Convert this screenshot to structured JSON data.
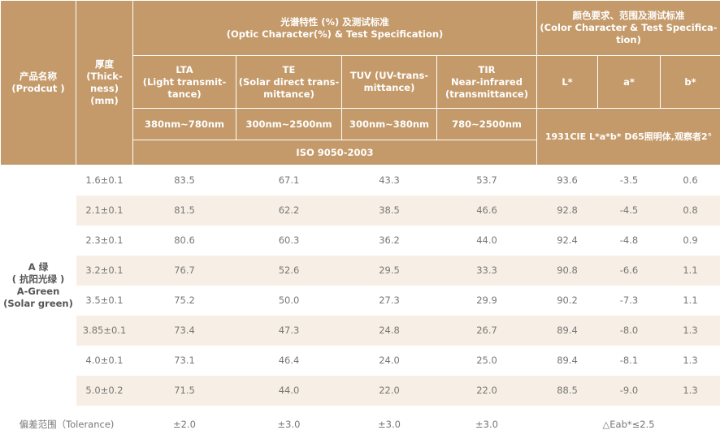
{
  "header": {
    "product": [
      "产品名称",
      "(Prodcut )"
    ],
    "thickness": [
      "厚度",
      "(Thick-",
      "ness)",
      "(mm)"
    ],
    "optic_group": [
      "光谱特性 (%) 及测试标准",
      "(Optic Character(%) & Test Specification)"
    ],
    "color_group": [
      "颜色要求、范围及测试标准",
      "(Color Character & Test Specifica-",
      "tion)"
    ],
    "lta": [
      "LTA",
      "(Light transmit-",
      "tance)"
    ],
    "te": [
      "TE",
      "(Solar direct trans-",
      "mittance)"
    ],
    "tuv": [
      "TUV  (UV-trans-",
      "mittance)"
    ],
    "tir": [
      "TIR",
      "Near-infrared",
      "(transmittance)"
    ],
    "color_columns": [
      "L*",
      "a*",
      "b*"
    ],
    "ranges": [
      "380nm~780nm",
      "300nm~2500nm",
      "300nm~380nm",
      "780~2500nm"
    ],
    "color_standard": "1931CIE L*a*b*  D65照明体,观察者2°",
    "optic_standard": "ISO 9050-2003"
  },
  "product": [
    "A 绿",
    "( 抗阳光绿 )",
    "A-Green",
    "(Solar green)"
  ],
  "rows": [
    [
      "1.6±0.1",
      "83.5",
      "67.1",
      "43.3",
      "53.7",
      "93.6",
      "-3.5",
      "0.6"
    ],
    [
      "2.1±0.1",
      "81.5",
      "62.2",
      "38.5",
      "46.6",
      "92.8",
      "-4.5",
      "0.8"
    ],
    [
      "2.3±0.1",
      "80.6",
      "60.3",
      "36.2",
      "44.0",
      "92.4",
      "-4.8",
      "0.9"
    ],
    [
      "3.2±0.1",
      "76.7",
      "52.6",
      "29.5",
      "33.3",
      "90.8",
      "-6.6",
      "1.1"
    ],
    [
      "3.5±0.1",
      "75.2",
      "50.0",
      "27.3",
      "29.9",
      "90.2",
      "-7.3",
      "1.1"
    ],
    [
      "3.85±0.1",
      "73.4",
      "47.3",
      "24.8",
      "26.7",
      "89.4",
      "-8.0",
      "1.3"
    ],
    [
      "4.0±0.1",
      "73.1",
      "46.4",
      "24.0",
      "25.0",
      "89.4",
      "-8.1",
      "1.3"
    ],
    [
      "5.0±0.2",
      "71.5",
      "44.0",
      "22.0",
      "22.0",
      "88.5",
      "-9.0",
      "1.3"
    ]
  ],
  "tolerance": {
    "label": "偏差范围（Tolerance)",
    "values": [
      "±2.0",
      "±3.0",
      "±3.0",
      "±3.0"
    ],
    "color": "△Eab*≤2.5"
  }
}
